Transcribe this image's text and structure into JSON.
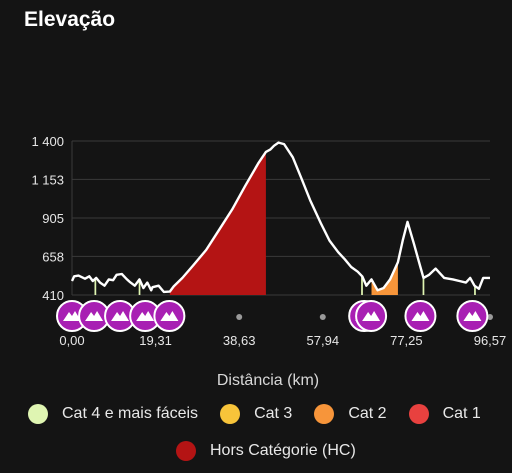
{
  "header": {
    "title": "Elevação"
  },
  "chart_data": {
    "type": "area",
    "title": "",
    "xlabel": "Distância (km)",
    "ylabel": "",
    "x_ticks": [
      "0,00",
      "19,31",
      "38,63",
      "57,94",
      "77,25",
      "96,57"
    ],
    "x_tick_values": [
      0,
      19.31,
      38.63,
      57.94,
      77.25,
      96.57
    ],
    "y_ticks": [
      "1 400",
      "1 153",
      "905",
      "658",
      "410"
    ],
    "y_tick_values": [
      1400,
      1153,
      905,
      658,
      410
    ],
    "xlim": [
      0,
      96.57
    ],
    "ylim": [
      410,
      1400
    ],
    "grid": true,
    "profile": {
      "x": [
        0,
        0.5,
        1.5,
        3,
        4,
        4.8,
        5.6,
        6.5,
        7.5,
        8.5,
        9.5,
        10.3,
        11.5,
        12.7,
        13.3,
        14.5,
        15.6,
        16.5,
        17.4,
        18.3,
        18.6,
        20,
        21.2,
        22.6,
        23.5,
        25.5,
        28,
        31,
        34,
        37,
        40,
        43,
        44.8,
        45.8,
        46.7,
        47.7,
        49,
        51,
        53,
        55,
        57.5,
        59.5,
        61.5,
        63,
        64.5,
        66,
        67.1,
        68,
        69.2,
        70.6,
        72,
        73.5,
        75.3,
        76.4,
        77.5,
        79,
        80.5,
        81.2,
        82.5,
        84,
        86,
        88,
        89.5,
        91,
        92,
        93,
        94,
        95,
        96.57
      ],
      "y": [
        500,
        530,
        535,
        515,
        530,
        500,
        520,
        490,
        470,
        510,
        505,
        540,
        545,
        510,
        495,
        470,
        510,
        455,
        490,
        440,
        460,
        470,
        430,
        432,
        465,
        520,
        600,
        700,
        830,
        960,
        1110,
        1255,
        1330,
        1345,
        1370,
        1390,
        1380,
        1295,
        1160,
        1020,
        870,
        760,
        685,
        640,
        590,
        560,
        528,
        470,
        510,
        440,
        455,
        510,
        620,
        760,
        880,
        740,
        590,
        520,
        540,
        580,
        520,
        510,
        500,
        490,
        520,
        470,
        450,
        520,
        520
      ]
    },
    "climbs": [
      {
        "category": "Hors Catégorie (HC)",
        "color": "#b41414",
        "x_start": 22.6,
        "x_end": 44.8
      },
      {
        "category": "Cat 2",
        "color": "#f7953a",
        "x_start": 69.2,
        "x_end": 75.3
      },
      {
        "category": "Cat 4 e mais fáceis",
        "color": "#dff5b2",
        "x_start": 5.2,
        "x_end": 5.6
      },
      {
        "category": "Cat 4 e mais fáceis",
        "color": "#dff5b2",
        "x_start": 15.4,
        "x_end": 15.8
      },
      {
        "category": "Cat 4 e mais fáceis",
        "color": "#dff5b2",
        "x_start": 66.8,
        "x_end": 67.2
      },
      {
        "category": "Cat 4 e mais fáceis",
        "color": "#dff5b2",
        "x_start": 81.0,
        "x_end": 81.4
      },
      {
        "category": "Cat 4 e mais fáceis",
        "color": "#dff5b2",
        "x_start": 92.9,
        "x_end": 93.3
      }
    ],
    "climb_markers_x": [
      0,
      5.1,
      11.1,
      16.9,
      22.5,
      67.5,
      69.1,
      80.5,
      92.5
    ],
    "gray_dots_x": [
      38.63,
      57.94,
      96.57
    ],
    "legend": [
      {
        "label": "Cat 4 e mais fáceis",
        "color": "#dff5b2"
      },
      {
        "label": "Cat 3",
        "color": "#f7c43a"
      },
      {
        "label": "Cat 2",
        "color": "#f7953a"
      },
      {
        "label": "Cat 1",
        "color": "#e8413f"
      },
      {
        "label": "Hors Catégorie (HC)",
        "color": "#b41414"
      }
    ],
    "legend_placement": "bottom"
  }
}
